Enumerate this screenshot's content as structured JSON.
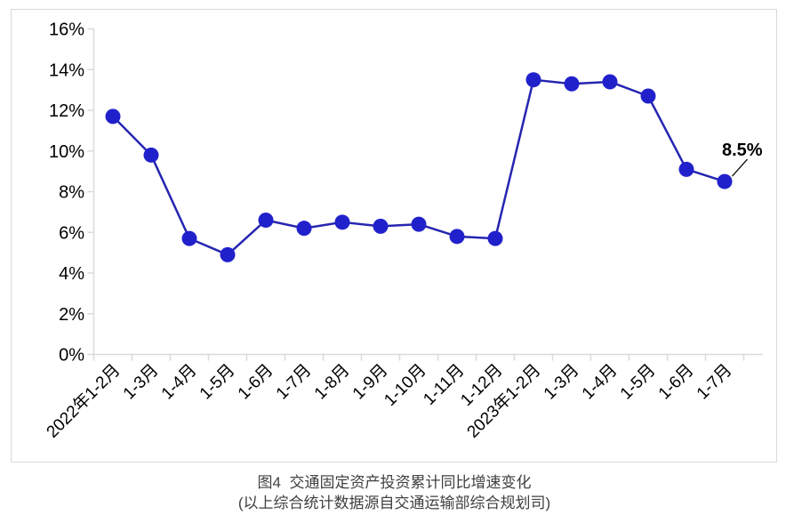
{
  "chart_data": {
    "type": "line",
    "caption": "图4  交通固定资产投资累计同比增速变化",
    "source_note": "(以上综合统计数据源自交通运输部综合规划司)",
    "categories": [
      "2022年1-2月",
      "1-3月",
      "1-4月",
      "1-5月",
      "1-6月",
      "1-7月",
      "1-8月",
      "1-9月",
      "1-10月",
      "1-11月",
      "1-12月",
      "2023年1-2月",
      "1-3月",
      "1-4月",
      "1-5月",
      "1-6月",
      "1-7月"
    ],
    "values": [
      11.7,
      9.8,
      5.7,
      4.9,
      6.6,
      6.2,
      6.5,
      6.3,
      6.4,
      5.8,
      5.7,
      13.5,
      13.3,
      13.4,
      12.7,
      9.1,
      8.5
    ],
    "ylim": [
      0,
      16
    ],
    "ytick_step": 2,
    "ytick_labels": [
      "0%",
      "2%",
      "4%",
      "6%",
      "8%",
      "10%",
      "12%",
      "14%",
      "16%"
    ],
    "xlabel": "",
    "ylabel": "",
    "grid": false,
    "legend_position": "none",
    "annotation": {
      "text": "8.5%",
      "point_index": 16
    },
    "colors": {
      "line": "#2525b0",
      "marker": "#2121cc",
      "axis": "#d9d9d9",
      "frame_border": "#d9d9d9",
      "axis_label": "#000000",
      "annotation": "#000000",
      "caption": "#404040"
    }
  }
}
